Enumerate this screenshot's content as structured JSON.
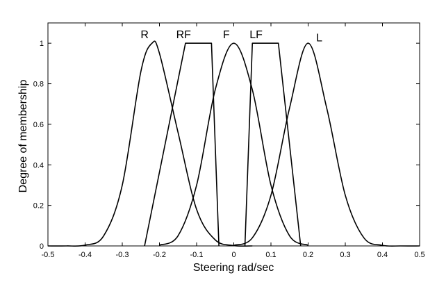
{
  "chart_data": {
    "type": "line",
    "xlabel": "Steering rad/sec",
    "ylabel": "Degree of membership",
    "xlim": [
      -0.5,
      0.5
    ],
    "ylim": [
      0,
      1.1
    ],
    "xticks": [
      "-0.5",
      "-0.4",
      "-0.3",
      "-0.2",
      "-0.1",
      "0",
      "0.1",
      "0.2",
      "0.3",
      "0.4",
      "0.5"
    ],
    "yticks": [
      "0",
      "0.2",
      "0.4",
      "0.6",
      "0.8",
      "1"
    ],
    "grid": false,
    "series": [
      {
        "name": "R",
        "shape": "gaussian",
        "x": [
          -0.5,
          -0.45,
          -0.4,
          -0.35,
          -0.3,
          -0.25,
          -0.22,
          -0.2,
          -0.15,
          -0.1,
          -0.05,
          0.0,
          0.05
        ],
        "y": [
          0.0,
          0.0,
          0.004,
          0.05,
          0.3,
          0.86,
          1.0,
          0.95,
          0.56,
          0.18,
          0.03,
          0.002,
          0.0
        ]
      },
      {
        "name": "RF",
        "shape": "trapezoid",
        "x": [
          -0.24,
          -0.13,
          -0.06,
          -0.04
        ],
        "y": [
          0,
          1,
          1,
          0
        ]
      },
      {
        "name": "F",
        "shape": "gaussian",
        "x": [
          -0.2,
          -0.15,
          -0.1,
          -0.05,
          0.0,
          0.05,
          0.1,
          0.15,
          0.2
        ],
        "y": [
          0.004,
          0.05,
          0.3,
          0.77,
          1.0,
          0.77,
          0.3,
          0.05,
          0.004
        ]
      },
      {
        "name": "LF",
        "shape": "trapezoid",
        "x": [
          0.03,
          0.05,
          0.12,
          0.18
        ],
        "y": [
          0,
          1,
          1,
          0
        ]
      },
      {
        "name": "L",
        "shape": "gaussian",
        "x": [
          0.0,
          0.05,
          0.1,
          0.15,
          0.2,
          0.25,
          0.3,
          0.35,
          0.4,
          0.45,
          0.5
        ],
        "y": [
          0.003,
          0.04,
          0.25,
          0.68,
          1.0,
          0.68,
          0.25,
          0.04,
          0.003,
          0.0,
          0.0
        ]
      }
    ],
    "labels": [
      {
        "text": "R",
        "x": -0.24,
        "y": 1.025
      },
      {
        "text": "RF",
        "x": -0.135,
        "y": 1.025
      },
      {
        "text": "F",
        "x": -0.02,
        "y": 1.025
      },
      {
        "text": "LF",
        "x": 0.06,
        "y": 1.025
      },
      {
        "text": "L",
        "x": 0.23,
        "y": 1.01
      }
    ]
  }
}
